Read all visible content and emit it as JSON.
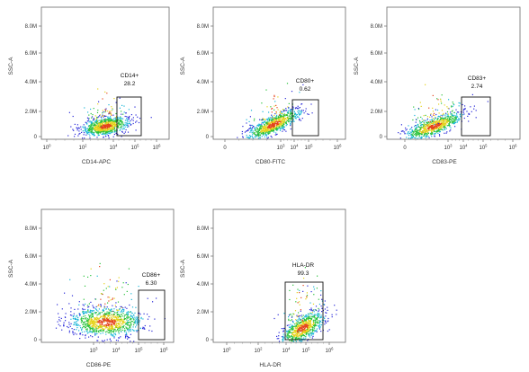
{
  "chart_data": [
    {
      "type": "scatter",
      "xlabel": "CD14-APC",
      "ylabel": "SSC-A",
      "y_ticks": [
        "8.0M",
        "6.0M",
        "4.0M",
        "2.0M",
        "0"
      ],
      "x_ticks": [
        {
          "base": "10",
          "exp": "0"
        },
        {
          "base": "10",
          "exp": "2"
        },
        {
          "base": "10",
          "exp": "4"
        },
        {
          "base": "10",
          "exp": "5"
        },
        {
          "base": "10",
          "exp": "6"
        }
      ],
      "gate": {
        "name": "CD14+",
        "percent": "28.2"
      }
    },
    {
      "type": "scatter",
      "xlabel": "CD80-FITC",
      "ylabel": "SSC-A",
      "y_ticks": [
        "8.0M",
        "6.0M",
        "4.0M",
        "2.0M",
        "0"
      ],
      "x_ticks": [
        {
          "base": "0",
          "exp": ""
        },
        {
          "base": "10",
          "exp": "3"
        },
        {
          "base": "10",
          "exp": "4"
        },
        {
          "base": "10",
          "exp": "5"
        },
        {
          "base": "10",
          "exp": "6"
        }
      ],
      "gate": {
        "name": "CD80+",
        "percent": "0.62"
      }
    },
    {
      "type": "scatter",
      "xlabel": "CD83-PE",
      "ylabel": "SSC-A",
      "y_ticks": [
        "8.0M",
        "6.0M",
        "4.0M",
        "2.0M",
        "0"
      ],
      "x_ticks": [
        {
          "base": "0",
          "exp": ""
        },
        {
          "base": "10",
          "exp": "3"
        },
        {
          "base": "10",
          "exp": "4"
        },
        {
          "base": "10",
          "exp": "5"
        },
        {
          "base": "10",
          "exp": "6"
        }
      ],
      "gate": {
        "name": "CD83+",
        "percent": "2.74"
      }
    },
    {
      "type": "scatter",
      "xlabel": "CD86-PE",
      "ylabel": "SSC-A",
      "y_ticks": [
        "8.0M",
        "6.0M",
        "4.0M",
        "2.0M",
        "0"
      ],
      "x_ticks": [
        {
          "base": "10",
          "exp": "3"
        },
        {
          "base": "10",
          "exp": "4"
        },
        {
          "base": "10",
          "exp": "5"
        },
        {
          "base": "10",
          "exp": "6"
        }
      ],
      "gate": {
        "name": "CD86+",
        "percent": "6.30"
      }
    },
    {
      "type": "scatter",
      "xlabel": "HLA-DR",
      "ylabel": "SSC-A",
      "y_ticks": [
        "8.0M",
        "6.0M",
        "4.0M",
        "2.0M",
        "0"
      ],
      "x_ticks": [
        {
          "base": "10",
          "exp": "0"
        },
        {
          "base": "10",
          "exp": "2"
        },
        {
          "base": "10",
          "exp": "4"
        },
        {
          "base": "10",
          "exp": "5"
        },
        {
          "base": "10",
          "exp": "6"
        }
      ],
      "gate": {
        "name": "HLA-DR",
        "percent": "99.3"
      }
    }
  ]
}
